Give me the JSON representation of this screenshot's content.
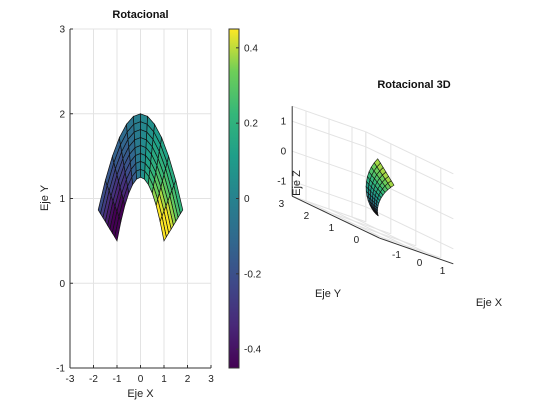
{
  "chart_data": [
    {
      "type": "surface-2d",
      "title": "Rotacional",
      "xlabel": "Eje X",
      "ylabel": "Eje Y",
      "xlim": [
        -3,
        3
      ],
      "ylim": [
        -1,
        3
      ],
      "xticks": [
        "-3",
        "-2",
        "-1",
        "0",
        "1",
        "2",
        "3"
      ],
      "yticks": [
        "-1",
        "0",
        "1",
        "2",
        "3"
      ],
      "grid": true,
      "colorbar": {
        "colormap": "viridis",
        "range": [
          -0.45,
          0.45
        ],
        "ticks": [
          "-0.4",
          "-0.2",
          "0",
          "0.2",
          "0.4"
        ],
        "tick_values": [
          -0.4,
          -0.2,
          0,
          0.2,
          0.4
        ]
      },
      "surface": {
        "shape": "parabolic band",
        "outer_curve": "y = 2 - 0.35*x^2, x in [-1.8, 1.8]",
        "inner_curve": "y = 1.25 - 0.75*x^2, x in [-1, 1]",
        "value_range": [
          -0.45,
          0.45
        ]
      }
    },
    {
      "type": "surface-3d",
      "title": "Rotacional 3D",
      "xlabel": "Eje X",
      "ylabel": "Eje Y",
      "zlabel": "Eje Z",
      "xticks": [
        "-1",
        "0",
        "1"
      ],
      "yticks": [
        "0",
        "1",
        "2",
        "3"
      ],
      "zticks": [
        "-1",
        "0",
        "1"
      ],
      "grid": true,
      "colormap": "viridis"
    }
  ]
}
